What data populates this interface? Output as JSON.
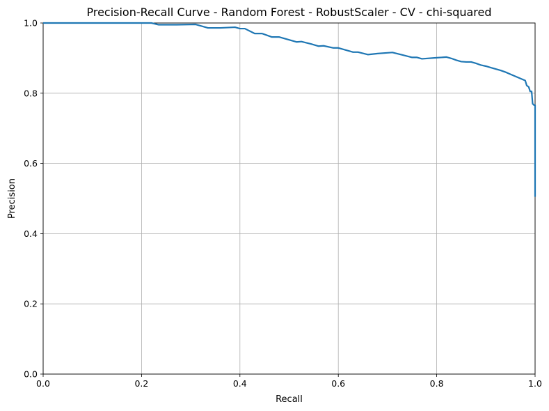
{
  "chart_data": {
    "type": "line",
    "title": "Precision-Recall Curve - Random Forest - RobustScaler - CV - chi-squared",
    "xlabel": "Recall",
    "ylabel": "Precision",
    "xlim": [
      0.0,
      1.0
    ],
    "ylim": [
      0.0,
      1.0
    ],
    "xticks": [
      "0.0",
      "0.2",
      "0.4",
      "0.6",
      "0.8",
      "1.0"
    ],
    "yticks": [
      "0.0",
      "0.2",
      "0.4",
      "0.6",
      "0.8",
      "1.0"
    ],
    "grid": true,
    "legend": "none",
    "series": [
      {
        "color": "#1f77b4",
        "x": [
          0.0,
          0.05,
          0.1,
          0.15,
          0.2,
          0.22,
          0.235,
          0.27,
          0.31,
          0.335,
          0.36,
          0.39,
          0.4,
          0.41,
          0.43,
          0.445,
          0.465,
          0.48,
          0.5,
          0.515,
          0.525,
          0.545,
          0.56,
          0.57,
          0.59,
          0.6,
          0.615,
          0.63,
          0.64,
          0.66,
          0.68,
          0.7,
          0.71,
          0.73,
          0.75,
          0.76,
          0.77,
          0.8,
          0.82,
          0.83,
          0.84,
          0.85,
          0.86,
          0.87,
          0.88,
          0.89,
          0.9,
          0.91,
          0.92,
          0.93,
          0.94,
          0.95,
          0.96,
          0.97,
          0.98,
          0.983,
          0.987,
          0.99,
          0.993,
          0.995,
          0.998,
          1.0,
          1.0
        ],
        "y": [
          1.0,
          1.0,
          1.0,
          1.0,
          1.0,
          1.0,
          0.995,
          0.995,
          0.996,
          0.986,
          0.986,
          0.988,
          0.984,
          0.984,
          0.97,
          0.97,
          0.96,
          0.96,
          0.952,
          0.946,
          0.947,
          0.94,
          0.934,
          0.935,
          0.929,
          0.929,
          0.923,
          0.917,
          0.917,
          0.91,
          0.913,
          0.915,
          0.916,
          0.909,
          0.902,
          0.902,
          0.898,
          0.901,
          0.903,
          0.899,
          0.894,
          0.89,
          0.889,
          0.889,
          0.885,
          0.88,
          0.877,
          0.873,
          0.869,
          0.865,
          0.86,
          0.854,
          0.848,
          0.842,
          0.836,
          0.822,
          0.818,
          0.805,
          0.805,
          0.77,
          0.766,
          0.766,
          0.505
        ]
      }
    ]
  }
}
